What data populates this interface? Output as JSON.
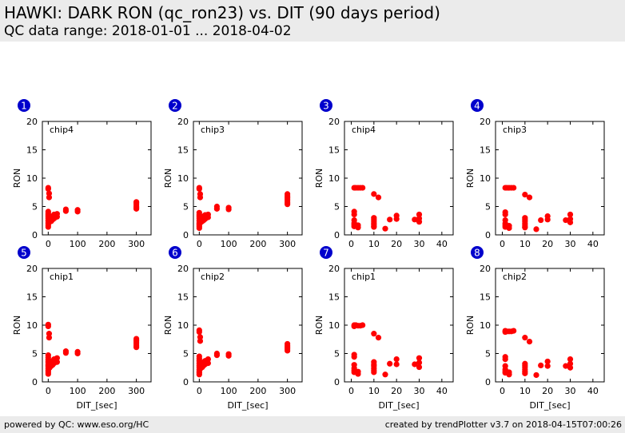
{
  "header": {
    "title": "HAWKI: DARK RON (qc_ron23) vs. DIT (90 days period)",
    "subtitle": "QC data range: 2018-01-01 ... 2018-04-02"
  },
  "footer": {
    "left": "powered by QC: www.eso.org/HC",
    "right": "created by trendPlotter v3.7 on 2018-04-15T07:00:26"
  },
  "colors": {
    "marker": "#ff0000",
    "badge": "#0000cc",
    "header_bg": "#ebebeb"
  },
  "chart_data": [
    {
      "type": "scatter",
      "badge": "1",
      "label": "chip4",
      "ylabel": "RON",
      "xlabel": "",
      "xlim": [
        -20,
        350
      ],
      "ylim": [
        0,
        20
      ],
      "xticks": [
        0,
        100,
        200,
        300
      ],
      "yticks": [
        0,
        5,
        10,
        15,
        20
      ],
      "series": [
        {
          "x": [
            0,
            0,
            0,
            0,
            0,
            0,
            0,
            0,
            0,
            0,
            0,
            3,
            3,
            5,
            5,
            10,
            10,
            15,
            15,
            20,
            20,
            30,
            30,
            60,
            60,
            100,
            100,
            300,
            300,
            300,
            300,
            300,
            300
          ],
          "y": [
            8.3,
            8.1,
            4.1,
            3.8,
            3.5,
            3.2,
            2.9,
            2.5,
            2.1,
            1.7,
            1.4,
            7.3,
            6.6,
            2.8,
            2.3,
            3.0,
            2.4,
            3.3,
            2.7,
            3.6,
            2.9,
            3.7,
            3.2,
            4.5,
            4.2,
            4.4,
            4.1,
            5.8,
            5.6,
            5.3,
            5.0,
            4.8,
            4.6
          ]
        }
      ]
    },
    {
      "type": "scatter",
      "badge": "2",
      "label": "chip3",
      "ylabel": "RON",
      "xlabel": "",
      "xlim": [
        -20,
        350
      ],
      "ylim": [
        0,
        20
      ],
      "xticks": [
        0,
        100,
        200,
        300
      ],
      "yticks": [
        0,
        5,
        10,
        15,
        20
      ],
      "series": [
        {
          "x": [
            0,
            0,
            0,
            0,
            0,
            0,
            0,
            0,
            0,
            0,
            0,
            3,
            3,
            5,
            5,
            10,
            10,
            15,
            15,
            20,
            20,
            30,
            30,
            60,
            60,
            100,
            100,
            300,
            300,
            300,
            300,
            300,
            300,
            300
          ],
          "y": [
            8.3,
            8.1,
            3.9,
            3.5,
            3.2,
            2.9,
            2.5,
            2.1,
            1.8,
            1.5,
            1.2,
            7.2,
            6.6,
            2.7,
            2.2,
            2.9,
            2.4,
            3.3,
            2.6,
            3.5,
            2.8,
            3.6,
            3.1,
            5.0,
            4.6,
            4.8,
            4.5,
            7.2,
            6.9,
            6.6,
            6.3,
            6.0,
            5.7,
            5.4
          ]
        }
      ]
    },
    {
      "type": "scatter",
      "badge": "3",
      "label": "chip4",
      "ylabel": "RON",
      "xlabel": "",
      "xlim": [
        -3,
        45
      ],
      "ylim": [
        0,
        20
      ],
      "xticks": [
        0,
        10,
        20,
        30,
        40
      ],
      "yticks": [
        0,
        5,
        10,
        15,
        20
      ],
      "series": [
        {
          "x": [
            1.3,
            1.3,
            1.3,
            1.3,
            1.3,
            1.3,
            1.3,
            2,
            3,
            4,
            5,
            3,
            3,
            10,
            10,
            10,
            10,
            10,
            10,
            10,
            10,
            12,
            15,
            17,
            20,
            20,
            28,
            30,
            30,
            30
          ],
          "y": [
            8.3,
            4.1,
            3.6,
            2.6,
            2.1,
            1.8,
            1.5,
            8.3,
            8.3,
            8.3,
            8.3,
            1.3,
            1.7,
            7.2,
            3.0,
            2.7,
            2.4,
            2.1,
            1.8,
            1.5,
            1.4,
            6.6,
            1.1,
            2.7,
            3.4,
            2.8,
            2.7,
            3.6,
            2.9,
            2.3
          ]
        }
      ]
    },
    {
      "type": "scatter",
      "badge": "4",
      "label": "chip3",
      "ylabel": "RON",
      "xlabel": "",
      "xlim": [
        -3,
        45
      ],
      "ylim": [
        0,
        20
      ],
      "xticks": [
        0,
        10,
        20,
        30,
        40
      ],
      "yticks": [
        0,
        5,
        10,
        15,
        20
      ],
      "series": [
        {
          "x": [
            1.3,
            1.3,
            1.3,
            1.3,
            1.3,
            1.3,
            1.3,
            2,
            3,
            4,
            5,
            3,
            3,
            10,
            10,
            10,
            10,
            10,
            10,
            10,
            10,
            12,
            15,
            17,
            20,
            20,
            28,
            30,
            30,
            30
          ],
          "y": [
            8.3,
            4.0,
            3.6,
            2.6,
            2.0,
            1.7,
            1.4,
            8.3,
            8.3,
            8.3,
            8.3,
            1.2,
            1.6,
            7.1,
            3.0,
            2.7,
            2.4,
            2.0,
            1.7,
            1.4,
            1.3,
            6.6,
            1.0,
            2.6,
            3.3,
            2.7,
            2.6,
            3.6,
            2.8,
            2.2
          ]
        }
      ]
    },
    {
      "type": "scatter",
      "badge": "5",
      "label": "chip1",
      "ylabel": "RON",
      "xlabel": "DIT_[sec]",
      "xlim": [
        -20,
        350
      ],
      "ylim": [
        0,
        20
      ],
      "xticks": [
        0,
        100,
        200,
        300
      ],
      "yticks": [
        0,
        5,
        10,
        15,
        20
      ],
      "series": [
        {
          "x": [
            0,
            0,
            0,
            0,
            0,
            0,
            0,
            0,
            0,
            0,
            0,
            0,
            3,
            3,
            5,
            5,
            10,
            10,
            15,
            15,
            20,
            20,
            30,
            30,
            60,
            60,
            100,
            100,
            300,
            300,
            300,
            300,
            300,
            300
          ],
          "y": [
            10.1,
            9.8,
            4.7,
            4.3,
            3.9,
            3.5,
            3.1,
            2.8,
            2.4,
            2.0,
            1.7,
            1.4,
            8.5,
            7.8,
            3.1,
            2.5,
            3.4,
            2.8,
            3.7,
            3.0,
            4.0,
            3.3,
            4.2,
            3.5,
            5.4,
            5.1,
            5.3,
            5.0,
            7.6,
            7.3,
            7.0,
            6.7,
            6.4,
            6.1
          ]
        }
      ]
    },
    {
      "type": "scatter",
      "badge": "6",
      "label": "chip2",
      "ylabel": "RON",
      "xlabel": "DIT_[sec]",
      "xlim": [
        -20,
        350
      ],
      "ylim": [
        0,
        20
      ],
      "xticks": [
        0,
        100,
        200,
        300
      ],
      "yticks": [
        0,
        5,
        10,
        15,
        20
      ],
      "series": [
        {
          "x": [
            0,
            0,
            0,
            0,
            0,
            0,
            0,
            0,
            0,
            0,
            0,
            0,
            3,
            3,
            5,
            5,
            10,
            10,
            15,
            15,
            20,
            20,
            30,
            30,
            60,
            60,
            100,
            100,
            300,
            300,
            300,
            300,
            300
          ],
          "y": [
            9.1,
            8.8,
            4.5,
            4.1,
            3.7,
            3.3,
            2.9,
            2.6,
            2.2,
            1.9,
            1.6,
            1.3,
            7.9,
            7.2,
            2.9,
            2.4,
            3.2,
            2.6,
            3.5,
            2.9,
            3.7,
            3.1,
            4.0,
            3.3,
            5.0,
            4.7,
            4.9,
            4.6,
            6.7,
            6.4,
            6.1,
            5.8,
            5.5
          ]
        }
      ]
    },
    {
      "type": "scatter",
      "badge": "7",
      "label": "chip1",
      "ylabel": "RON",
      "xlabel": "DIT_[sec]",
      "xlim": [
        -3,
        45
      ],
      "ylim": [
        0,
        20
      ],
      "xticks": [
        0,
        10,
        20,
        30,
        40
      ],
      "yticks": [
        0,
        5,
        10,
        15,
        20
      ],
      "series": [
        {
          "x": [
            1.3,
            1.3,
            1.3,
            1.3,
            1.3,
            1.3,
            1.3,
            1.3,
            2,
            3,
            4,
            5,
            3,
            3,
            10,
            10,
            10,
            10,
            10,
            10,
            10,
            12,
            15,
            17,
            20,
            20,
            28,
            30,
            30,
            30
          ],
          "y": [
            10.0,
            9.8,
            4.8,
            4.4,
            3.0,
            2.4,
            2.0,
            1.7,
            10.0,
            9.9,
            9.9,
            10.0,
            1.4,
            1.8,
            8.5,
            3.5,
            3.1,
            2.8,
            2.4,
            2.0,
            1.7,
            7.8,
            1.3,
            3.2,
            4.0,
            3.1,
            3.1,
            4.2,
            3.4,
            2.6
          ]
        }
      ]
    },
    {
      "type": "scatter",
      "badge": "8",
      "label": "chip2",
      "ylabel": "RON",
      "xlabel": "DIT_[sec]",
      "xlim": [
        -3,
        45
      ],
      "ylim": [
        0,
        20
      ],
      "xticks": [
        0,
        10,
        20,
        30,
        40
      ],
      "yticks": [
        0,
        5,
        10,
        15,
        20
      ],
      "series": [
        {
          "x": [
            1.3,
            1.3,
            1.3,
            1.3,
            1.3,
            1.3,
            1.3,
            1.3,
            2,
            3,
            4,
            5,
            3,
            3,
            10,
            10,
            10,
            10,
            10,
            10,
            10,
            12,
            15,
            17,
            20,
            20,
            28,
            30,
            30,
            30
          ],
          "y": [
            9.0,
            8.8,
            4.4,
            4.0,
            2.8,
            2.2,
            1.9,
            1.6,
            8.9,
            8.9,
            8.9,
            9.0,
            1.3,
            1.7,
            7.8,
            3.2,
            2.9,
            2.6,
            2.2,
            1.8,
            1.5,
            7.1,
            1.2,
            2.9,
            3.6,
            2.8,
            2.8,
            4.0,
            3.2,
            2.5
          ]
        }
      ]
    }
  ]
}
